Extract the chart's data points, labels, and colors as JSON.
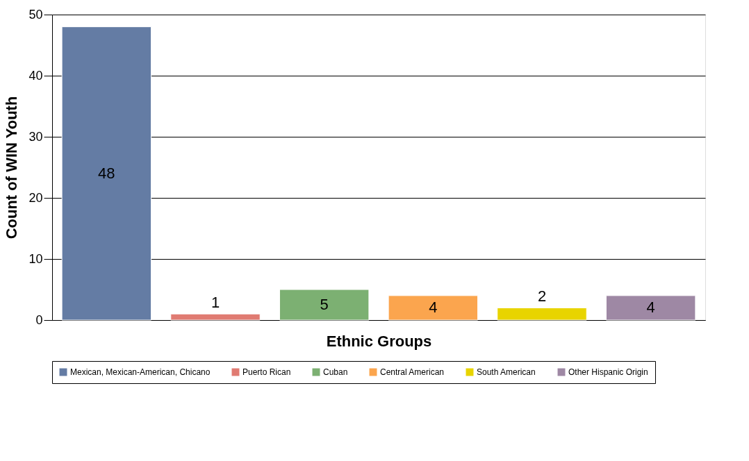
{
  "chart_data": {
    "type": "bar",
    "xlabel": "Ethnic Groups",
    "ylabel": "Count of WIN Youth",
    "categories": [
      null,
      null,
      null,
      null,
      null,
      null
    ],
    "series": [
      {
        "name": "Mexican, Mexican-American, Chicano",
        "color": "#647ca4",
        "values": [
          48,
          null,
          null,
          null,
          null,
          null
        ]
      },
      {
        "name": "Puerto Rican",
        "color": "#e07b72",
        "values": [
          null,
          1,
          null,
          null,
          null,
          null
        ]
      },
      {
        "name": "Cuban",
        "color": "#7cb072",
        "values": [
          null,
          null,
          5,
          null,
          null,
          null
        ]
      },
      {
        "name": "Central American",
        "color": "#fba54e",
        "values": [
          null,
          null,
          null,
          4,
          null,
          null
        ]
      },
      {
        "name": "South American",
        "color": "#e8d400",
        "values": [
          null,
          null,
          null,
          null,
          2,
          null
        ]
      },
      {
        "name": "Other Hispanic Origin",
        "color": "#9e88a4",
        "values": [
          null,
          null,
          null,
          null,
          null,
          4
        ]
      }
    ],
    "ylim": [
      0,
      50
    ],
    "yticks": [
      0,
      10,
      20,
      30,
      40,
      50
    ],
    "grid": "y",
    "legend": "bottom",
    "tick_labels": "y",
    "data_labels": true
  }
}
